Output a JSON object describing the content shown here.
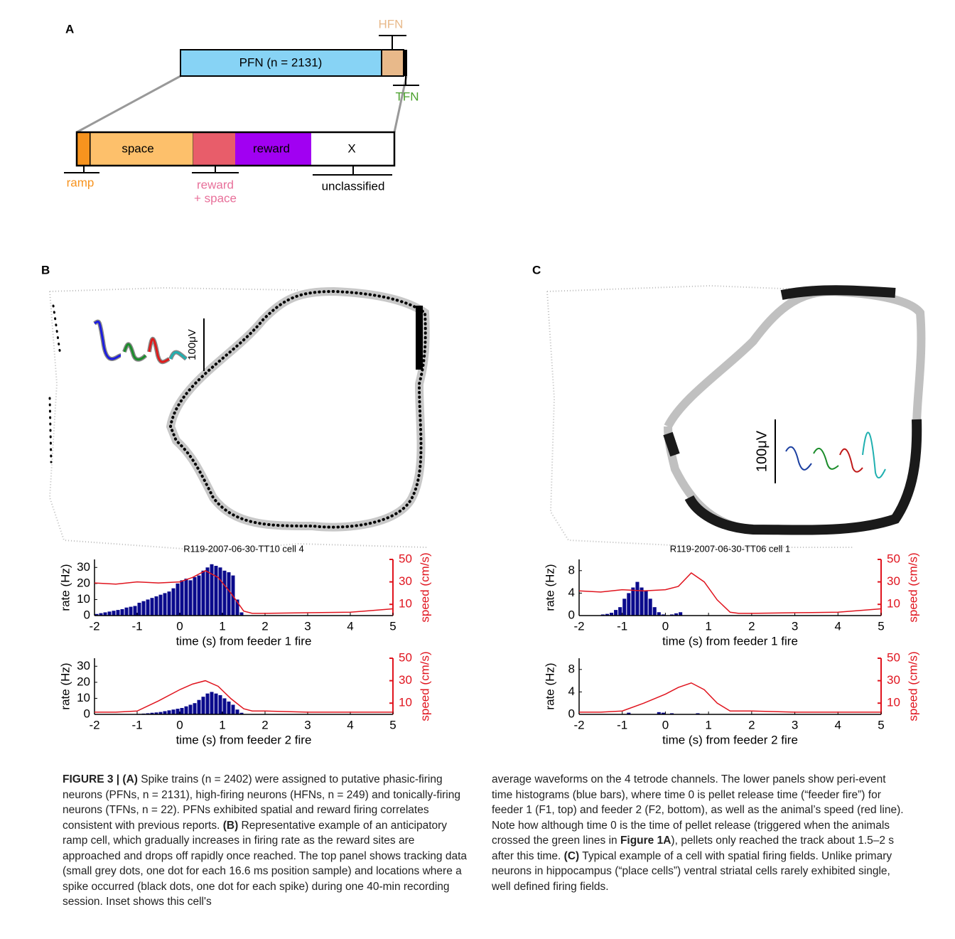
{
  "panel_a": {
    "label": "A",
    "hfn": "HFN",
    "pfn": "PFN (n = 2131)",
    "tfn": "TFN",
    "space": "space",
    "reward": "reward",
    "x": "X",
    "ramp": "ramp",
    "reward_space": [
      "reward",
      "+ space"
    ],
    "unclassified": "unclassified"
  },
  "panel_b": {
    "label": "B",
    "scale_bar": "100μV"
  },
  "panel_c": {
    "label": "C",
    "scale_bar": "100μV"
  },
  "chart_data": [
    {
      "type": "histogram",
      "title": "R119-2007-06-30-TT10 cell 4",
      "xlabel": "time (s) from feeder 1 fire",
      "ylabel": "rate (Hz)",
      "y2label": "speed (cm/s)",
      "color": "#0a0a8c",
      "bins": [
        -2,
        -1.9,
        -1.8,
        -1.7,
        -1.6,
        -1.5,
        -1.4,
        -1.3,
        -1.2,
        -1.1,
        -1,
        -0.9,
        -0.8,
        -0.7,
        -0.6,
        -0.5,
        -0.4,
        -0.3,
        -0.2,
        -0.1,
        0,
        0.1,
        0.2,
        0.3,
        0.4,
        0.5,
        0.6,
        0.7,
        0.8,
        0.9,
        1,
        1.1,
        1.2,
        1.3,
        1.4,
        1.5
      ],
      "counts": [
        1,
        1.5,
        2,
        2.5,
        3,
        3.5,
        4,
        5,
        5.5,
        6,
        8,
        9,
        10,
        11,
        12,
        13,
        14,
        15,
        17,
        20,
        22,
        23,
        22,
        24,
        25,
        28,
        30,
        32,
        31,
        30,
        28,
        27,
        25,
        10,
        2
      ],
      "line": {
        "x": [
          -2,
          -1.5,
          -1,
          -0.5,
          0,
          0.3,
          0.6,
          0.9,
          1.2,
          1.5,
          1.7,
          2,
          3,
          4,
          5
        ],
        "values": [
          29,
          28,
          30,
          29,
          30,
          34,
          40,
          34,
          20,
          4,
          2,
          2,
          2.5,
          3,
          6
        ],
        "color": "#e0141e",
        "axis": "y2"
      },
      "xlim": [
        -2,
        5
      ],
      "xticks": [
        -2,
        -1,
        0,
        1,
        2,
        3,
        4,
        5
      ],
      "ylim": [
        0,
        35
      ],
      "yticks": [
        0,
        10,
        20,
        30
      ],
      "y2lim": [
        0,
        50
      ],
      "y2ticks": [
        10,
        30,
        50
      ]
    },
    {
      "type": "histogram",
      "xlabel": "time (s) from feeder 2 fire",
      "ylabel": "rate (Hz)",
      "y2label": "speed (cm/s)",
      "color": "#0a0a8c",
      "bins": [
        -2,
        -1.9,
        -1.8,
        -1.7,
        -1.6,
        -1.5,
        -1.4,
        -1.3,
        -1.2,
        -1.1,
        -1,
        -0.9,
        -0.8,
        -0.7,
        -0.6,
        -0.5,
        -0.4,
        -0.3,
        -0.2,
        -0.1,
        0,
        0.1,
        0.2,
        0.3,
        0.4,
        0.5,
        0.6,
        0.7,
        0.8,
        0.9,
        1,
        1.1,
        1.2,
        1.3,
        1.4,
        1.5
      ],
      "counts": [
        0,
        0,
        0,
        0,
        0,
        0,
        0,
        0,
        0,
        0,
        0.3,
        0.5,
        0.7,
        1,
        1.2,
        1.5,
        2,
        2.5,
        3,
        3.5,
        4,
        5,
        6,
        7,
        9,
        11,
        13,
        14,
        13,
        12,
        10,
        8,
        6,
        3,
        1
      ],
      "line": {
        "x": [
          -2,
          -1.5,
          -1,
          -0.5,
          0,
          0.3,
          0.6,
          0.9,
          1.2,
          1.5,
          1.7,
          2,
          3,
          4,
          5
        ],
        "values": [
          2,
          2,
          3,
          12,
          22,
          27,
          30,
          25,
          14,
          5,
          3,
          3,
          2,
          2,
          2
        ],
        "color": "#e0141e",
        "axis": "y2"
      },
      "xlim": [
        -2,
        5
      ],
      "xticks": [
        -2,
        -1,
        0,
        1,
        2,
        3,
        4,
        5
      ],
      "ylim": [
        0,
        35
      ],
      "yticks": [
        0,
        10,
        20,
        30
      ],
      "y2lim": [
        0,
        50
      ],
      "y2ticks": [
        10,
        30,
        50
      ]
    },
    {
      "type": "histogram",
      "title": "R119-2007-06-30-TT06 cell 1",
      "xlabel": "time (s) from feeder 1 fire",
      "ylabel": "rate (Hz)",
      "y2label": "speed (cm/s)",
      "color": "#0a0a8c",
      "bins": [
        -2,
        -1.9,
        -1.8,
        -1.7,
        -1.6,
        -1.5,
        -1.4,
        -1.3,
        -1.2,
        -1.1,
        -1,
        -0.9,
        -0.8,
        -0.7,
        -0.6,
        -0.5,
        -0.4,
        -0.3,
        -0.2,
        -0.1,
        0,
        0.1,
        0.2,
        0.3,
        0.4,
        0.5,
        0.6,
        0.7,
        0.8,
        0.9,
        1,
        1.1,
        1.2,
        1.3,
        1.4,
        1.5
      ],
      "counts": [
        0,
        0,
        0,
        0,
        0,
        0.2,
        0.3,
        0.5,
        1,
        1.5,
        3,
        4,
        5,
        6,
        5,
        4.5,
        3,
        1.5,
        0.6,
        0.2,
        0,
        0.2,
        0.4,
        0.6,
        0,
        0,
        0,
        0,
        0,
        0,
        0,
        0,
        0,
        0,
        0
      ],
      "line": {
        "x": [
          -2,
          -1.5,
          -1,
          -0.5,
          0,
          0.3,
          0.6,
          0.9,
          1.2,
          1.5,
          1.7,
          2,
          3,
          4,
          5
        ],
        "values": [
          22,
          21,
          23,
          22,
          23,
          26,
          38,
          30,
          14,
          3,
          2,
          2,
          2.5,
          3,
          6
        ],
        "color": "#e0141e",
        "axis": "y2"
      },
      "xlim": [
        -2,
        5
      ],
      "xticks": [
        -2,
        -1,
        0,
        1,
        2,
        3,
        4,
        5
      ],
      "ylim": [
        0,
        10
      ],
      "yticks": [
        0,
        4,
        8
      ],
      "y2lim": [
        0,
        50
      ],
      "y2ticks": [
        10,
        30,
        50
      ]
    },
    {
      "type": "histogram",
      "xlabel": "time (s) from feeder 2 fire",
      "ylabel": "rate (Hz)",
      "y2label": "speed (cm/s)",
      "color": "#0a0a8c",
      "bins": [
        -2,
        -1.9,
        -1.8,
        -1.7,
        -1.6,
        -1.5,
        -1.4,
        -1.3,
        -1.2,
        -1.1,
        -1,
        -0.9,
        -0.8,
        -0.7,
        -0.6,
        -0.5,
        -0.4,
        -0.3,
        -0.2,
        -0.1,
        0,
        0.1,
        0.2,
        0.3,
        0.4,
        0.5,
        0.6,
        0.7,
        0.8,
        0.9,
        1,
        1.1,
        1.2,
        1.3,
        1.4,
        1.5
      ],
      "counts": [
        0,
        0,
        0,
        0,
        0,
        0,
        0,
        0,
        0,
        0,
        0,
        0.3,
        0,
        0,
        0,
        0,
        0,
        0,
        0.4,
        0.3,
        0,
        0.2,
        0,
        0,
        0,
        0,
        0,
        0.2,
        0,
        0,
        0,
        0,
        0,
        0,
        0
      ],
      "line": {
        "x": [
          -2,
          -1.5,
          -1,
          -0.5,
          0,
          0.3,
          0.6,
          0.9,
          1.2,
          1.5,
          1.7,
          2,
          3,
          4,
          5
        ],
        "values": [
          2,
          2,
          3,
          10,
          18,
          24,
          28,
          22,
          10,
          3,
          3,
          3,
          2,
          2,
          2
        ],
        "color": "#e0141e",
        "axis": "y2"
      },
      "xlim": [
        -2,
        5
      ],
      "xticks": [
        -2,
        -1,
        0,
        1,
        2,
        3,
        4,
        5
      ],
      "ylim": [
        0,
        10
      ],
      "yticks": [
        0,
        4,
        8
      ],
      "y2lim": [
        0,
        50
      ],
      "y2ticks": [
        10,
        30,
        50
      ]
    }
  ],
  "caption": {
    "left": [
      {
        "text": "FIGURE 3 | (A)",
        "bold": true
      },
      {
        "text": " Spike trains (n = 2402) were assigned to putative phasic-firing neurons (PFNs, n = 2131), high-firing neurons (HFNs, n = 249) and tonically-firing neurons (TFNs, n = 22). PFNs exhibited spatial and reward firing correlates consistent with previous reports. ",
        "bold": false
      },
      {
        "text": "(B)",
        "bold": true
      },
      {
        "text": " Representative example of an anticipatory ramp cell, which gradually increases in firing rate as the reward sites are approached and drops off rapidly once reached. The top panel shows tracking data (small grey dots, one dot for each 16.6 ms position sample) and locations where a spike occurred (black dots, one dot for each spike) during one 40-min recording session. Inset shows this cell's",
        "bold": false
      }
    ],
    "right": [
      {
        "text": "average waveforms on the 4 tetrode channels. The lower panels show peri-event time histograms (blue bars), where time 0 is pellet release time (“feeder fire”) for feeder 1 (F1, top) and feeder 2 (F2, bottom), as well as the animal’s speed (red line). Note how although time 0 is the time of pellet release (triggered when the animals crossed the green lines in ",
        "bold": false
      },
      {
        "text": "Figure 1A",
        "bold": true
      },
      {
        "text": "), pellets only reached the track about 1.5–2 s after this time. ",
        "bold": false
      },
      {
        "text": "(C)",
        "bold": true
      },
      {
        "text": " Typical example of a cell with spatial firing fields. Unlike primary neurons in hippocampus (“place cells”) ventral striatal cells rarely exhibited single, well defined firing fields.",
        "bold": false
      }
    ]
  }
}
